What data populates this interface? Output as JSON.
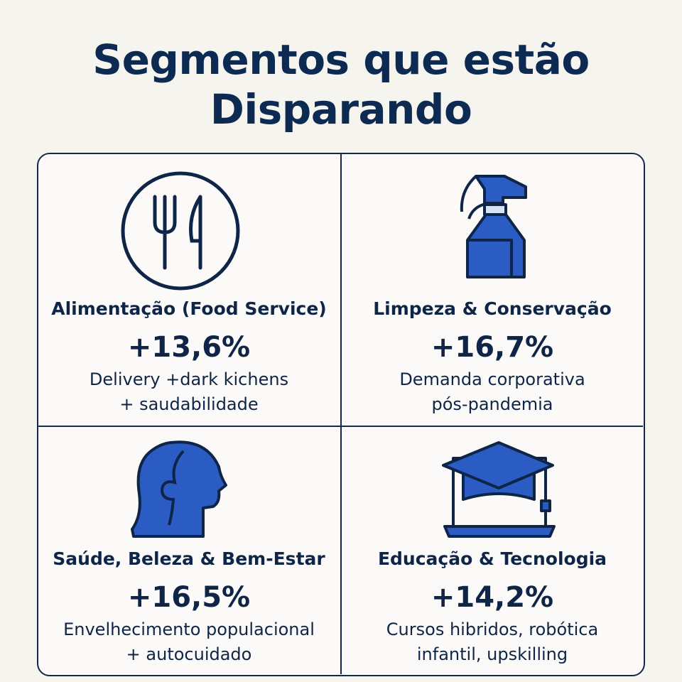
{
  "title_lines": [
    "Segmentos que estão",
    "Disparando"
  ],
  "cards": [
    {
      "name": "Alimentação (Food Service)",
      "growth": "+13,6%",
      "description": [
        "Delivery +dark kichens",
        "+ saudabilidade"
      ]
    },
    {
      "name": "Limpeza & Conservação",
      "growth": "+16,7%",
      "description": [
        "Demanda corporativa",
        "pós-pandemia"
      ]
    },
    {
      "name": "Saúde, Beleza & Bem-Estar",
      "growth": "+16,5%",
      "description": [
        "Envelhecimento populacional",
        "+ autocuidado"
      ]
    },
    {
      "name": "Educação & Tecnologia",
      "growth": "+14,2%",
      "description": [
        "Cursos hibridos, robótica",
        "infantil, upskilling"
      ]
    }
  ]
}
